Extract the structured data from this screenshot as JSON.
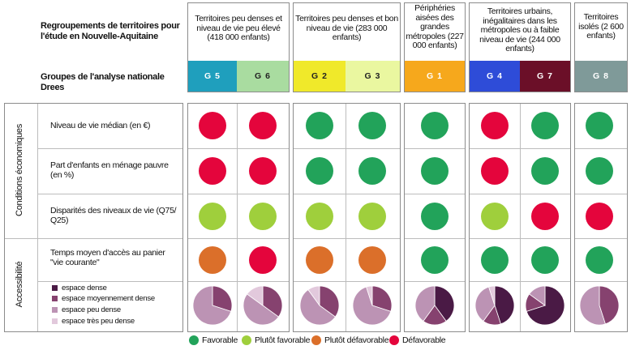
{
  "header": {
    "left_title": "Regroupements de territoires pour l'étude en Nouvelle-Aquitaine",
    "groups_label": "Groupes de l'analyse nationale Drees",
    "columns": [
      {
        "label": "Territoires peu denses et niveau de vie peu élevé (418 000 enfants)"
      },
      {
        "label": "Territoires peu denses et bon niveau de vie (283 000 enfants)"
      },
      {
        "label": "Périphéries aisées des grandes métropoles (227 000 enfants)"
      },
      {
        "label": "Territoires urbains, inégalitaires dans les métropoles ou à faible niveau de vie (244 000 enfants)"
      },
      {
        "label": "Territoires isolés (2 600 enfants)"
      }
    ],
    "groups": [
      {
        "code": "G 5",
        "color": "#1f9fbd"
      },
      {
        "code": "G 6",
        "color": "#a9dca0"
      },
      {
        "code": "G 2",
        "color": "#f0e92a"
      },
      {
        "code": "G 3",
        "color": "#eaf7a0"
      },
      {
        "code": "G 1",
        "color": "#f6a81c"
      },
      {
        "code": "G 4",
        "color": "#2e4cd8"
      },
      {
        "code": "G 7",
        "color": "#6b0f28"
      },
      {
        "code": "G 8",
        "color": "#7f9a99"
      }
    ]
  },
  "sections": {
    "economic": "Conditions économiques",
    "access": "Accessibilité"
  },
  "rows": [
    {
      "label": "Niveau de vie médian (en €)",
      "ratings": [
        "defavorable",
        "defavorable",
        "favorable",
        "favorable",
        "favorable",
        "defavorable",
        "favorable",
        "favorable"
      ]
    },
    {
      "label": "Part d'enfants en ménage pauvre (en %)",
      "ratings": [
        "defavorable",
        "defavorable",
        "favorable",
        "favorable",
        "favorable",
        "defavorable",
        "favorable",
        "favorable"
      ]
    },
    {
      "label": "Disparités des niveaux de vie (Q75/ Q25)",
      "ratings": [
        "plutot_favorable",
        "plutot_favorable",
        "plutot_favorable",
        "plutot_favorable",
        "favorable",
        "plutot_favorable",
        "defavorable",
        "defavorable"
      ]
    },
    {
      "label": "Temps moyen d'accès au panier \"vie courante\"",
      "ratings": [
        "plutot_defavorable",
        "defavorable",
        "plutot_defavorable",
        "plutot_defavorable",
        "favorable",
        "favorable",
        "favorable",
        "favorable"
      ]
    }
  ],
  "density_legend": [
    {
      "label": "espace dense",
      "color": "#4a1a45"
    },
    {
      "label": "espace moyennement dense",
      "color": "#86426f"
    },
    {
      "label": "espace peu dense",
      "color": "#bc93b4"
    },
    {
      "label": "espace très peu dense",
      "color": "#e2c9dc"
    }
  ],
  "density_pies": [
    [
      0,
      30,
      70,
      0
    ],
    [
      0,
      35,
      50,
      15
    ],
    [
      0,
      35,
      55,
      10
    ],
    [
      0,
      30,
      65,
      5
    ],
    [
      40,
      20,
      40,
      0
    ],
    [
      45,
      15,
      35,
      5
    ],
    [
      70,
      15,
      15,
      0
    ],
    [
      0,
      45,
      55,
      0
    ]
  ],
  "rating_colors": {
    "favorable": "#22a35a",
    "plutot_favorable": "#9fcf3c",
    "plutot_defavorable": "#db6f2a",
    "defavorable": "#e4053c"
  },
  "legend": [
    {
      "key": "favorable",
      "label": "Favorable"
    },
    {
      "key": "plutot_favorable",
      "label": "Plutôt favorable"
    },
    {
      "key": "plutot_defavorable",
      "label": "Plutôt défavorable"
    },
    {
      "key": "defavorable",
      "label": "Défavorable"
    }
  ]
}
